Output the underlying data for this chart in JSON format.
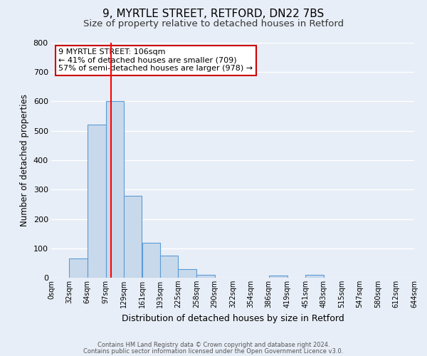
{
  "title": "9, MYRTLE STREET, RETFORD, DN22 7BS",
  "subtitle": "Size of property relative to detached houses in Retford",
  "xlabel": "Distribution of detached houses by size in Retford",
  "ylabel": "Number of detached properties",
  "bar_edges": [
    0,
    32,
    64,
    97,
    129,
    161,
    193,
    225,
    258,
    290,
    322,
    354,
    386,
    419,
    451,
    483,
    515,
    547,
    580,
    612,
    644
  ],
  "bar_heights": [
    0,
    65,
    520,
    600,
    280,
    120,
    75,
    28,
    10,
    0,
    0,
    0,
    8,
    0,
    10,
    0,
    0,
    0,
    0,
    0
  ],
  "bar_color": "#c9d9ec",
  "bar_edgecolor": "#5b9bd5",
  "red_line_x": 106,
  "annotation_text": "9 MYRTLE STREET: 106sqm\n← 41% of detached houses are smaller (709)\n57% of semi-detached houses are larger (978) →",
  "annotation_box_color": "#ffffff",
  "annotation_box_edgecolor": "#cc0000",
  "ylim": [
    0,
    800
  ],
  "yticks": [
    0,
    100,
    200,
    300,
    400,
    500,
    600,
    700,
    800
  ],
  "footer1": "Contains HM Land Registry data © Crown copyright and database right 2024.",
  "footer2": "Contains public sector information licensed under the Open Government Licence v3.0.",
  "background_color": "#e8eef7",
  "plot_bg_color": "#e8eef7",
  "grid_color": "#ffffff",
  "title_fontsize": 11,
  "subtitle_fontsize": 9.5,
  "ylabel_fontsize": 8.5,
  "xlabel_fontsize": 9
}
